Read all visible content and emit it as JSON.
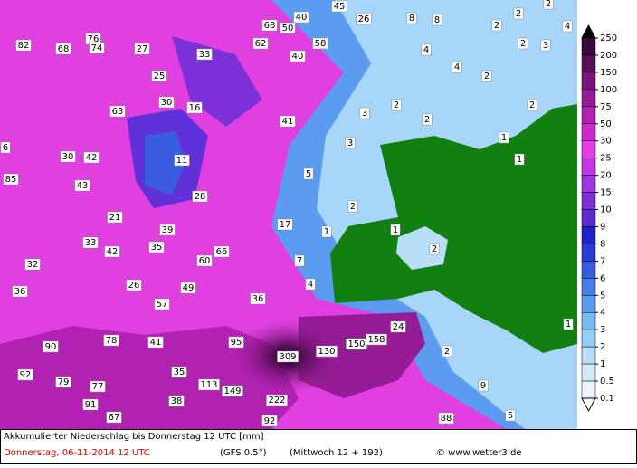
{
  "caption": {
    "title": "Akkumulierter Niederschlag bis Donnerstag 12 UTC [mm]",
    "date": "Donnerstag, 06-11-2014   12 UTC",
    "model": "(GFS 0.5°)",
    "run": "(Mittwoch 12 + 192)",
    "credit": "© www.wetter3.de"
  },
  "legend": {
    "ticks": [
      250,
      200,
      150,
      100,
      75,
      50,
      30,
      25,
      20,
      15,
      10,
      9,
      8,
      7,
      6,
      5,
      4,
      3,
      2,
      1,
      0.5,
      0.1
    ],
    "colors": [
      "#3a0a3a",
      "#5a0f5a",
      "#7a157a",
      "#951c95",
      "#b222b2",
      "#d028d0",
      "#e83ce8",
      "#c436e6",
      "#9f34e0",
      "#7c30d8",
      "#5a2cd0",
      "#2020c8",
      "#2a3ad4",
      "#3a5ce0",
      "#4a7cea",
      "#5c9cf0",
      "#78b8f4",
      "#98ccf8",
      "#b8def8",
      "#d4ecfa",
      "#eaf6fc"
    ]
  },
  "map_labels": [
    "82",
    "68",
    "76",
    "74",
    "27",
    "68",
    "40",
    "45",
    "26",
    "8",
    "8",
    "2",
    "2",
    "4",
    "50",
    "62",
    "58",
    "2",
    "2",
    "3",
    "33",
    "40",
    "4",
    "4",
    "2",
    "25",
    "30",
    "16",
    "63",
    "3",
    "2",
    "2",
    "2",
    "41",
    "6",
    "30",
    "42",
    "11",
    "3",
    "1",
    "1",
    "5",
    "85",
    "43",
    "28",
    "2",
    "21",
    "17",
    "39",
    "1",
    "1",
    "33",
    "42",
    "35",
    "66",
    "2",
    "32",
    "60",
    "7",
    "26",
    "49",
    "4",
    "36",
    "57",
    "36",
    "1",
    "24",
    "90",
    "78",
    "41",
    "95",
    "130",
    "150",
    "158",
    "2",
    "309",
    "92",
    "79",
    "35",
    "113",
    "77",
    "149",
    "9",
    "38",
    "222",
    "91",
    "67",
    "92",
    "88",
    "5"
  ]
}
